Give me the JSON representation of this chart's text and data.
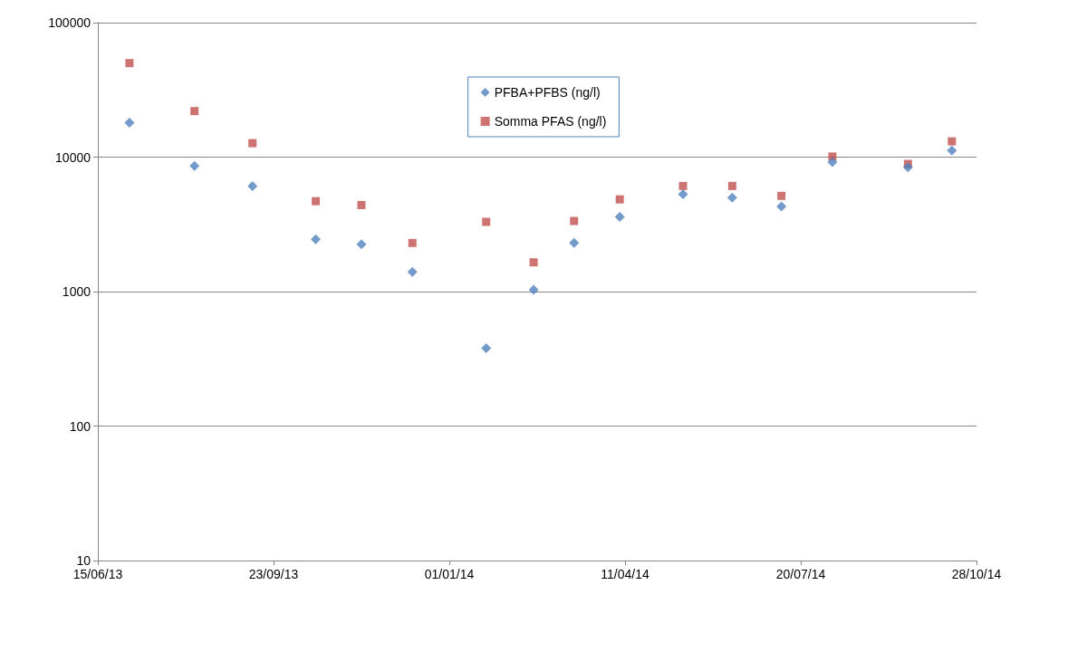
{
  "chart_data": {
    "type": "scatter",
    "x": [
      "2013-07-03",
      "2013-08-09",
      "2013-09-11",
      "2013-10-17",
      "2013-11-12",
      "2013-12-11",
      "2014-01-22",
      "2014-02-18",
      "2014-03-13",
      "2014-04-08",
      "2014-05-14",
      "2014-06-11",
      "2014-07-09",
      "2014-08-07",
      "2014-09-19",
      "2014-10-14"
    ],
    "series": [
      {
        "name": "PFBA+PFBS (ng/l)",
        "color": "#4f81bd",
        "marker": "diamond",
        "values": [
          18000,
          8600,
          6100,
          2450,
          2250,
          1400,
          380,
          1030,
          2300,
          3600,
          5300,
          5000,
          4300,
          9200,
          8400,
          11200
        ]
      },
      {
        "name": "Somma PFAS (ng/l)",
        "color": "#c0504d",
        "marker": "square",
        "values": [
          50000,
          22000,
          12700,
          4700,
          4400,
          2300,
          3300,
          1650,
          3350,
          4850,
          6100,
          6100,
          5150,
          10100,
          8900,
          13100
        ]
      }
    ],
    "xlim": [
      "2013-06-15",
      "2014-10-28"
    ],
    "xticks": [
      {
        "value": "2013-06-15",
        "label": "15/06/13"
      },
      {
        "value": "2013-09-23",
        "label": "23/09/13"
      },
      {
        "value": "2014-01-01",
        "label": "01/01/14"
      },
      {
        "value": "2014-04-11",
        "label": "11/04/14"
      },
      {
        "value": "2014-07-20",
        "label": "20/07/14"
      },
      {
        "value": "2014-10-28",
        "label": "28/10/14"
      }
    ],
    "ylim": [
      10,
      100000
    ],
    "yticks": [
      10,
      100,
      1000,
      10000,
      100000
    ],
    "log": "y",
    "grid": "y",
    "legend": "top"
  }
}
